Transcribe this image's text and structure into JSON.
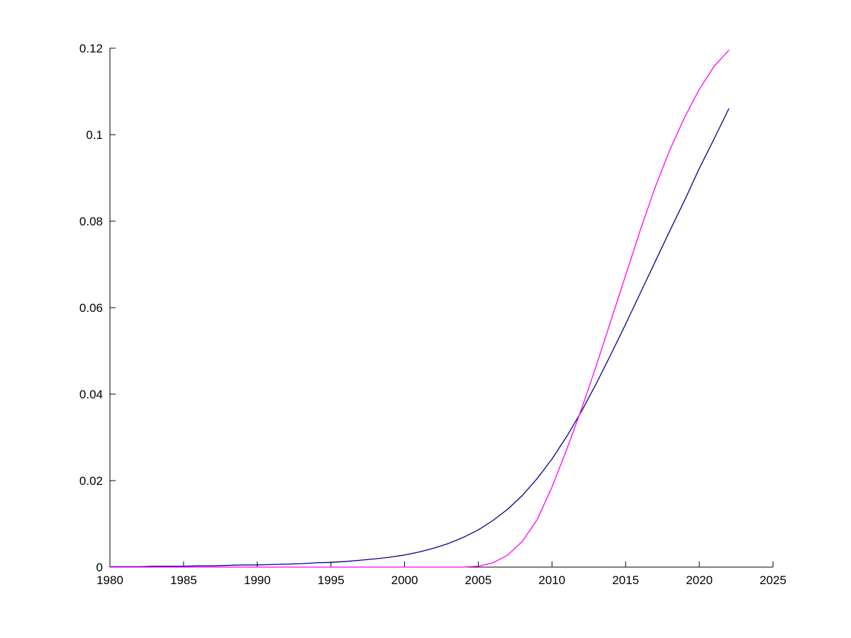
{
  "figure": {
    "background": "#ffffff",
    "axis_color": "#000000"
  },
  "chart_data": {
    "type": "line",
    "title": "",
    "xlabel": "",
    "ylabel": "",
    "grid": false,
    "legend": null,
    "xlim": [
      1980,
      2025
    ],
    "ylim": [
      0,
      0.12
    ],
    "xticks": [
      1980,
      1985,
      1990,
      1995,
      2000,
      2005,
      2010,
      2015,
      2020,
      2025
    ],
    "xtick_labels": [
      "1980",
      "1985",
      "1990",
      "1995",
      "2000",
      "2005",
      "2010",
      "2015",
      "2020",
      "2025"
    ],
    "yticks": [
      0,
      0.02,
      0.04,
      0.06,
      0.08,
      0.1,
      0.12
    ],
    "ytick_labels": [
      "0",
      "0.02",
      "0.04",
      "0.06",
      "0.08",
      "0.1",
      "0.12"
    ],
    "x": [
      1980,
      1981,
      1982,
      1983,
      1984,
      1985,
      1986,
      1987,
      1988,
      1989,
      1990,
      1991,
      1992,
      1993,
      1994,
      1995,
      1996,
      1997,
      1998,
      1999,
      2000,
      2001,
      2002,
      2003,
      2004,
      2005,
      2006,
      2007,
      2008,
      2009,
      2010,
      2011,
      2012,
      2013,
      2014,
      2015,
      2016,
      2017,
      2018,
      2019,
      2020,
      2021,
      2022
    ],
    "series": [
      {
        "name": "dark-blue-series",
        "color": "#00008B",
        "values": [
          0.0001,
          0.0001,
          0.0001,
          0.0002,
          0.0002,
          0.0002,
          0.0003,
          0.0003,
          0.0004,
          0.0005,
          0.0005,
          0.0006,
          0.0007,
          0.0008,
          0.001,
          0.0011,
          0.0013,
          0.0016,
          0.0019,
          0.0023,
          0.0028,
          0.0035,
          0.0044,
          0.0055,
          0.0069,
          0.0086,
          0.0108,
          0.0134,
          0.0166,
          0.0205,
          0.025,
          0.0302,
          0.036,
          0.0424,
          0.0492,
          0.0562,
          0.0634,
          0.0706,
          0.0778,
          0.0848,
          0.0922,
          0.099,
          0.106
        ]
      },
      {
        "name": "magenta-series",
        "color": "#FF00FF",
        "values": [
          0,
          0,
          0,
          0,
          0,
          0,
          0,
          0,
          0,
          0,
          0,
          0,
          0,
          0,
          0,
          0,
          0,
          0,
          0,
          0,
          0,
          0,
          0,
          0,
          0,
          0.0002,
          0.001,
          0.0028,
          0.006,
          0.011,
          0.0185,
          0.0272,
          0.0365,
          0.0465,
          0.057,
          0.0675,
          0.078,
          0.0878,
          0.0965,
          0.104,
          0.1105,
          0.1158,
          0.1195
        ]
      }
    ]
  }
}
